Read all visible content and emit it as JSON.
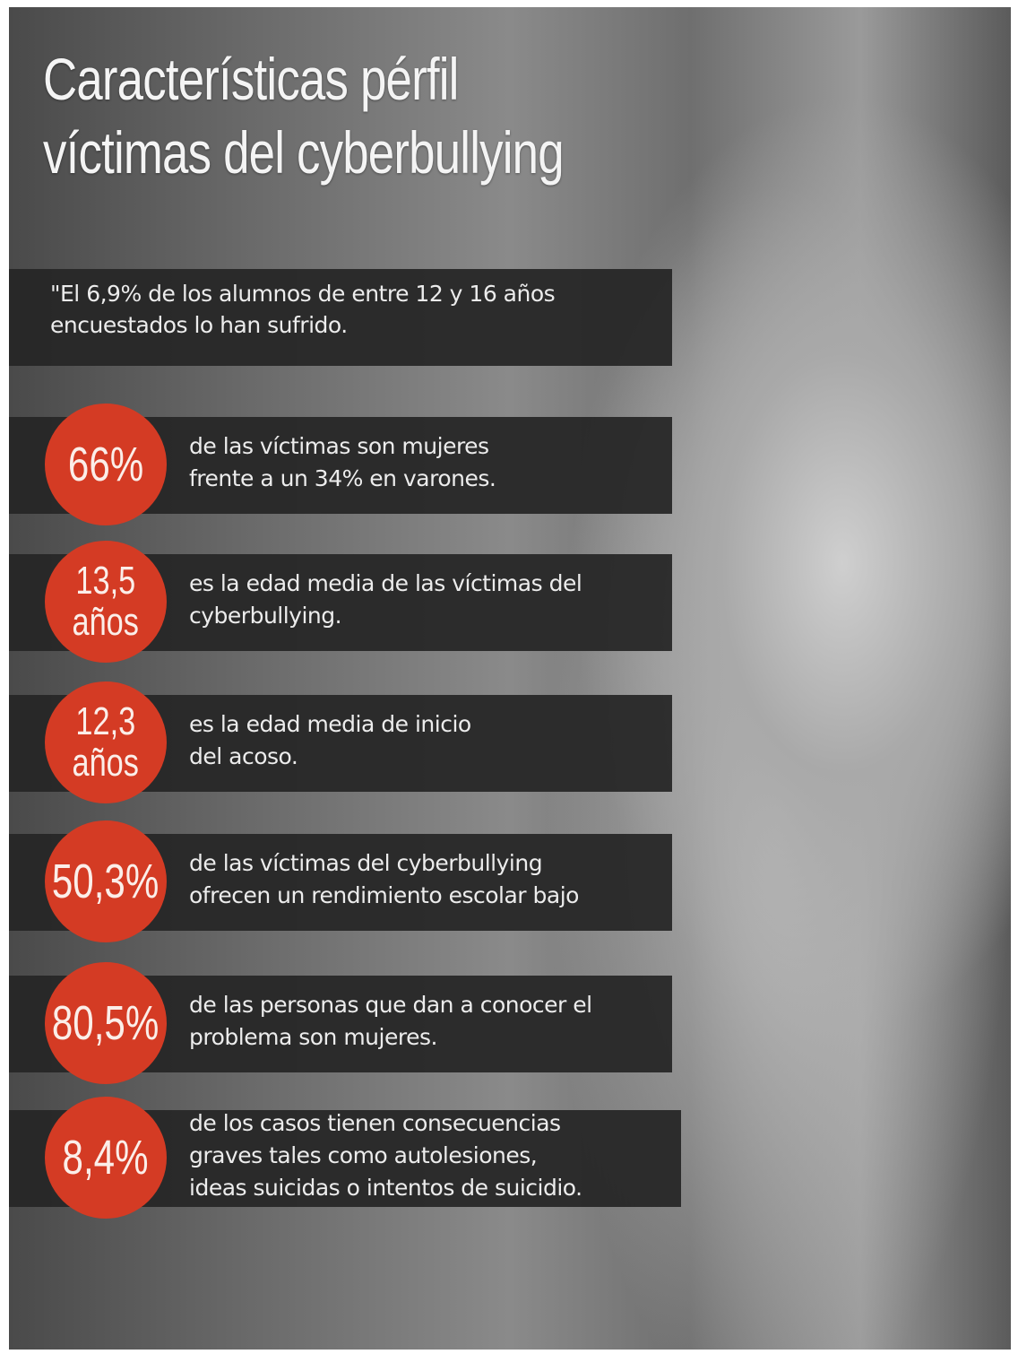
{
  "header": {
    "title": [
      "Características pérfil",
      "víctimas del cyberbullying"
    ]
  },
  "intro": [
    "\"El 6,9% de los alumnos de entre 12 y 16 años",
    "encuestados lo han sufrido."
  ],
  "stats": [
    {
      "figure": [
        "66%"
      ],
      "text": [
        "de las víctimas son mujeres",
        "frente a un 34% en varones."
      ]
    },
    {
      "figure": [
        "13,5",
        "años"
      ],
      "text": [
        "es la edad media de las víctimas del",
        "cyberbullying."
      ]
    },
    {
      "figure": [
        "12,3",
        "años"
      ],
      "text": [
        "es la edad media de inicio",
        "del acoso."
      ]
    },
    {
      "figure": [
        "50,3%"
      ],
      "text": [
        "de las víctimas del cyberbullying",
        "ofrecen un rendimiento escolar bajo"
      ]
    },
    {
      "figure": [
        "80,5%"
      ],
      "text": [
        "de las personas que dan a conocer el",
        "problema son mujeres."
      ]
    },
    {
      "figure": [
        "8,4%"
      ],
      "text": [
        "de los casos tienen consecuencias",
        "graves tales como autolesiones,",
        "ideas suicidas o intentos de suicidio."
      ]
    }
  ]
}
